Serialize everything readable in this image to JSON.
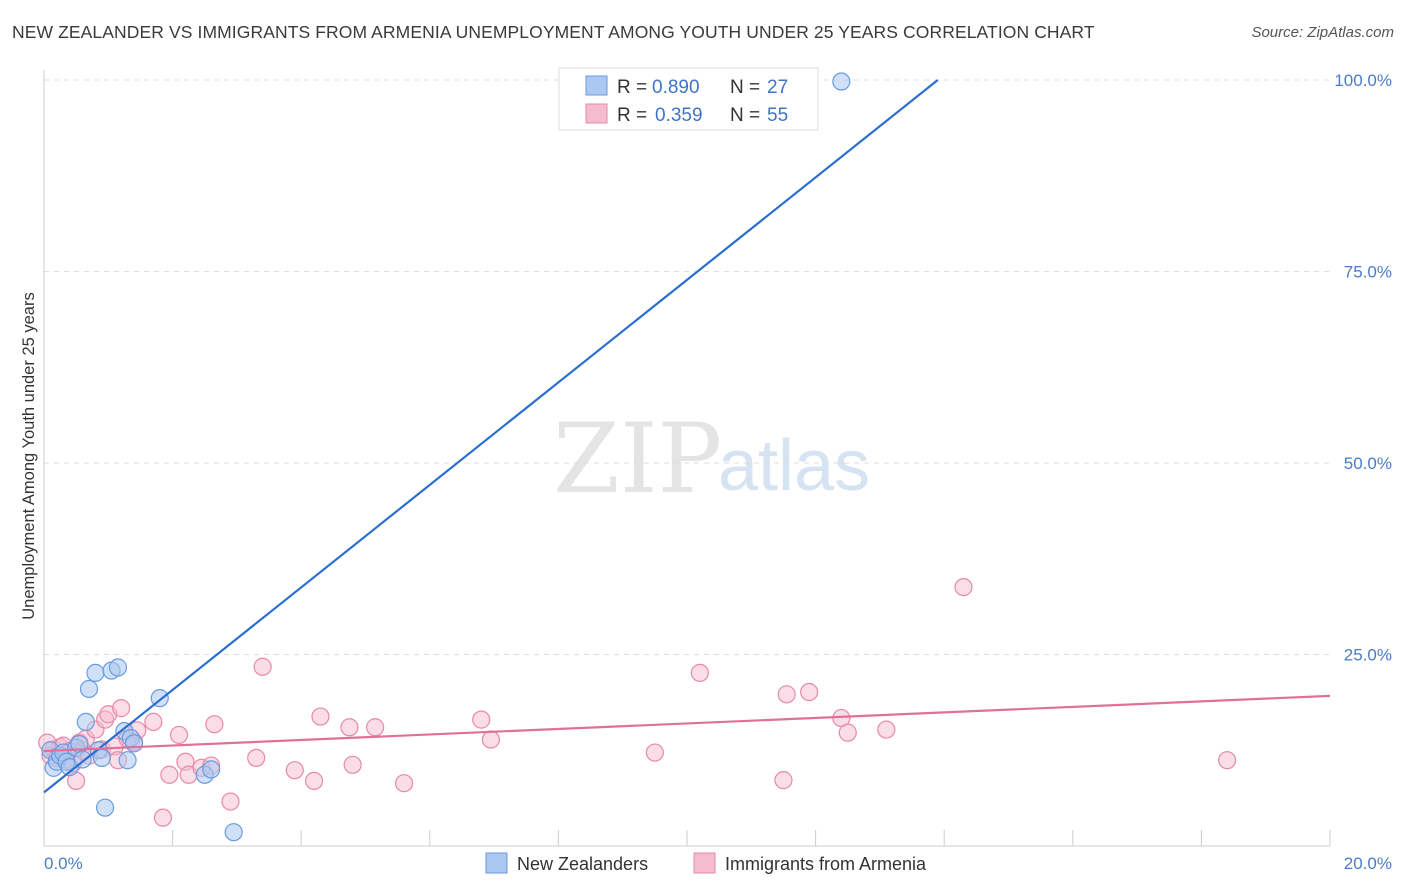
{
  "header": {
    "title": "NEW ZEALANDER VS IMMIGRANTS FROM ARMENIA UNEMPLOYMENT AMONG YOUTH UNDER 25 YEARS CORRELATION CHART",
    "source": "Source: ZipAtlas.com"
  },
  "watermark": {
    "zip": "ZIP",
    "atlas": "atlas"
  },
  "colors": {
    "blue_fill": "#aac8f0",
    "blue_stroke": "#6a9be0",
    "blue_line": "#2a6fd0",
    "pink_fill": "#f5bccf",
    "pink_stroke": "#e888aa",
    "pink_line": "#e0709a",
    "axis_text": "#4a7cc7",
    "grid": "#dddddd"
  },
  "legend_top": {
    "rows": [
      {
        "r_label": "R =",
        "r_value": "0.890",
        "n_label": "N =",
        "n_value": "27"
      },
      {
        "r_label": "R =",
        "r_value": "0.359",
        "n_label": "N =",
        "n_value": "55"
      }
    ]
  },
  "legend_bottom": {
    "items": [
      {
        "label": "New Zealanders"
      },
      {
        "label": "Immigrants from Armenia"
      }
    ]
  },
  "chart_data": {
    "type": "scatter",
    "title": "NEW ZEALANDER VS IMMIGRANTS FROM ARMENIA UNEMPLOYMENT AMONG YOUTH UNDER 25 YEARS CORRELATION CHART",
    "xlabel": "",
    "ylabel": "Unemployment Among Youth under 25 years",
    "xlim": [
      0,
      20
    ],
    "ylim": [
      0,
      102
    ],
    "x_tick_labels": [
      "0.0%",
      "20.0%"
    ],
    "y_ticks": [
      25,
      50,
      75,
      100
    ],
    "y_tick_labels": [
      "25.0%",
      "50.0%",
      "75.0%",
      "100.0%"
    ],
    "grid": true,
    "legend_position": "top-center",
    "series": [
      {
        "name": "New Zealanders",
        "r": 0.89,
        "n": 27,
        "trend": {
          "x": [
            0,
            13.9
          ],
          "y": [
            7.0,
            100.0
          ]
        },
        "points": [
          [
            0.1,
            12.5
          ],
          [
            0.15,
            10.2
          ],
          [
            0.2,
            11.0
          ],
          [
            0.25,
            11.8
          ],
          [
            0.3,
            12.2
          ],
          [
            0.35,
            11.0
          ],
          [
            0.4,
            10.3
          ],
          [
            0.5,
            12.8
          ],
          [
            0.55,
            13.3
          ],
          [
            0.6,
            11.3
          ],
          [
            0.65,
            16.2
          ],
          [
            0.7,
            20.5
          ],
          [
            0.8,
            22.6
          ],
          [
            0.85,
            12.5
          ],
          [
            0.9,
            11.5
          ],
          [
            0.95,
            5.0
          ],
          [
            1.05,
            22.9
          ],
          [
            1.15,
            23.3
          ],
          [
            1.25,
            15.0
          ],
          [
            1.3,
            11.2
          ],
          [
            1.35,
            14.1
          ],
          [
            1.4,
            13.4
          ],
          [
            1.8,
            19.3
          ],
          [
            2.5,
            9.3
          ],
          [
            2.6,
            10.0
          ],
          [
            2.95,
            1.8
          ],
          [
            12.4,
            99.8
          ]
        ]
      },
      {
        "name": "Immigrants from Armenia",
        "r": 0.359,
        "n": 55,
        "trend": {
          "x": [
            0,
            20
          ],
          "y": [
            12.4,
            19.6
          ]
        },
        "points": [
          [
            0.1,
            11.8
          ],
          [
            0.15,
            12.6
          ],
          [
            0.2,
            11.5
          ],
          [
            0.25,
            12.9
          ],
          [
            0.3,
            13.1
          ],
          [
            0.35,
            11.3
          ],
          [
            0.4,
            12.4
          ],
          [
            0.45,
            10.8
          ],
          [
            0.5,
            8.5
          ],
          [
            0.55,
            13.5
          ],
          [
            0.6,
            12.5
          ],
          [
            0.65,
            14.0
          ],
          [
            0.7,
            11.8
          ],
          [
            0.8,
            15.2
          ],
          [
            0.9,
            12.6
          ],
          [
            0.95,
            16.5
          ],
          [
            1.0,
            17.2
          ],
          [
            1.1,
            13.0
          ],
          [
            1.15,
            11.2
          ],
          [
            1.2,
            18.0
          ],
          [
            1.3,
            14.0
          ],
          [
            1.4,
            13.6
          ],
          [
            1.45,
            15.1
          ],
          [
            1.7,
            16.2
          ],
          [
            1.85,
            3.7
          ],
          [
            1.95,
            9.3
          ],
          [
            2.1,
            14.5
          ],
          [
            2.2,
            11.0
          ],
          [
            2.25,
            9.3
          ],
          [
            2.45,
            10.2
          ],
          [
            2.6,
            10.5
          ],
          [
            2.65,
            15.9
          ],
          [
            2.9,
            5.8
          ],
          [
            3.3,
            11.5
          ],
          [
            3.4,
            23.4
          ],
          [
            3.9,
            9.9
          ],
          [
            4.2,
            8.5
          ],
          [
            4.3,
            16.9
          ],
          [
            4.75,
            15.5
          ],
          [
            4.8,
            10.6
          ],
          [
            5.15,
            15.5
          ],
          [
            5.6,
            8.2
          ],
          [
            6.8,
            16.5
          ],
          [
            6.95,
            13.9
          ],
          [
            9.5,
            12.2
          ],
          [
            10.2,
            22.6
          ],
          [
            11.5,
            8.6
          ],
          [
            11.55,
            19.8
          ],
          [
            11.9,
            20.1
          ],
          [
            12.4,
            16.7
          ],
          [
            12.5,
            14.8
          ],
          [
            13.1,
            15.2
          ],
          [
            14.3,
            33.8
          ],
          [
            18.4,
            11.2
          ],
          [
            0.05,
            13.5
          ]
        ]
      }
    ]
  }
}
